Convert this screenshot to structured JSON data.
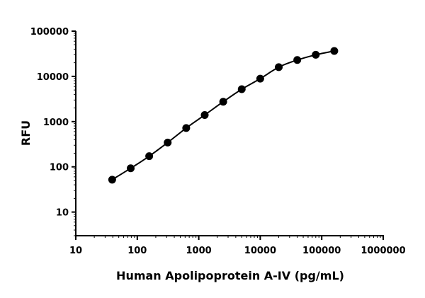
{
  "chart_data": {
    "type": "scatter",
    "xlabel": "Human Apolipoprotein A-IV (pg/mL)",
    "ylabel": "RFU",
    "x_scale": "log",
    "y_scale": "log",
    "xlim": [
      10,
      1000000
    ],
    "ylim": [
      3,
      100000
    ],
    "x_ticks": [
      "10",
      "100",
      "1000",
      "10000",
      "100000",
      "1000000"
    ],
    "y_ticks": [
      "10",
      "100",
      "1000",
      "10000",
      "100000"
    ],
    "grid": false,
    "legend": "none",
    "points": {
      "x": [
        39.06,
        78.13,
        156.25,
        312.5,
        625,
        1250,
        2500,
        5000,
        10000,
        20000,
        40000,
        80000,
        160000
      ],
      "y": [
        52,
        93,
        172,
        345,
        720,
        1400,
        2750,
        5200,
        8900,
        16000,
        23000,
        30000,
        36500
      ]
    },
    "fit_curve": true,
    "colors": {
      "points": "#000000",
      "curve": "#000000"
    }
  }
}
